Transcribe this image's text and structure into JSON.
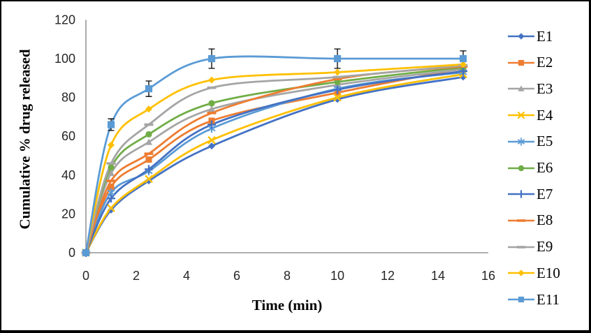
{
  "figure": {
    "background": "#ffffff",
    "border_color": "#000000"
  },
  "chart_data": {
    "type": "line",
    "title": "",
    "xlabel": "Time (min)",
    "ylabel": "Cumulative % drug released",
    "xlim": [
      0,
      16
    ],
    "ylim": [
      0,
      120
    ],
    "x_ticks": [
      0,
      2,
      4,
      6,
      8,
      10,
      12,
      14,
      16
    ],
    "y_ticks": [
      0,
      20,
      40,
      60,
      80,
      100,
      120
    ],
    "grid": false,
    "legend_position": "right",
    "line_style": "smooth",
    "x": [
      0,
      1,
      2.5,
      5,
      10,
      15
    ],
    "series": [
      {
        "name": "E1",
        "color": "#4472C4",
        "marker": "diamond",
        "values": [
          0,
          22,
          37,
          55,
          79,
          90.5
        ]
      },
      {
        "name": "E2",
        "color": "#ED7D31",
        "marker": "square",
        "values": [
          0,
          34,
          48,
          68,
          82.5,
          95
        ]
      },
      {
        "name": "E3",
        "color": "#A5A5A5",
        "marker": "triangle",
        "values": [
          0,
          41,
          57,
          74,
          86.5,
          94.5
        ]
      },
      {
        "name": "E4",
        "color": "#FFC000",
        "marker": "x",
        "values": [
          0,
          23,
          38,
          58,
          80,
          92
        ]
      },
      {
        "name": "E5",
        "color": "#5B9BD5",
        "marker": "asterisk",
        "values": [
          0,
          31,
          42,
          64,
          84.5,
          93
        ]
      },
      {
        "name": "E6",
        "color": "#70AD47",
        "marker": "circle",
        "values": [
          0,
          44,
          61,
          77,
          88,
          95.5
        ]
      },
      {
        "name": "E7",
        "color": "#4472C4",
        "marker": "plus",
        "values": [
          0,
          28,
          43,
          66,
          84,
          93.5
        ]
      },
      {
        "name": "E8",
        "color": "#ED7D31",
        "marker": "dash",
        "values": [
          0,
          37,
          51,
          72,
          89.5,
          96
        ]
      },
      {
        "name": "E9",
        "color": "#A5A5A5",
        "marker": "dash",
        "values": [
          0,
          46,
          66,
          85,
          90.5,
          96.5
        ]
      },
      {
        "name": "E10",
        "color": "#FFC000",
        "marker": "diamond",
        "values": [
          0,
          55.5,
          74,
          89,
          93,
          97
        ]
      },
      {
        "name": "E11",
        "color": "#5B9BD5",
        "marker": "square",
        "values": [
          0,
          66,
          84.5,
          100,
          100,
          100
        ],
        "error_bars": [
          0,
          3,
          4,
          5,
          5,
          4
        ]
      }
    ]
  }
}
